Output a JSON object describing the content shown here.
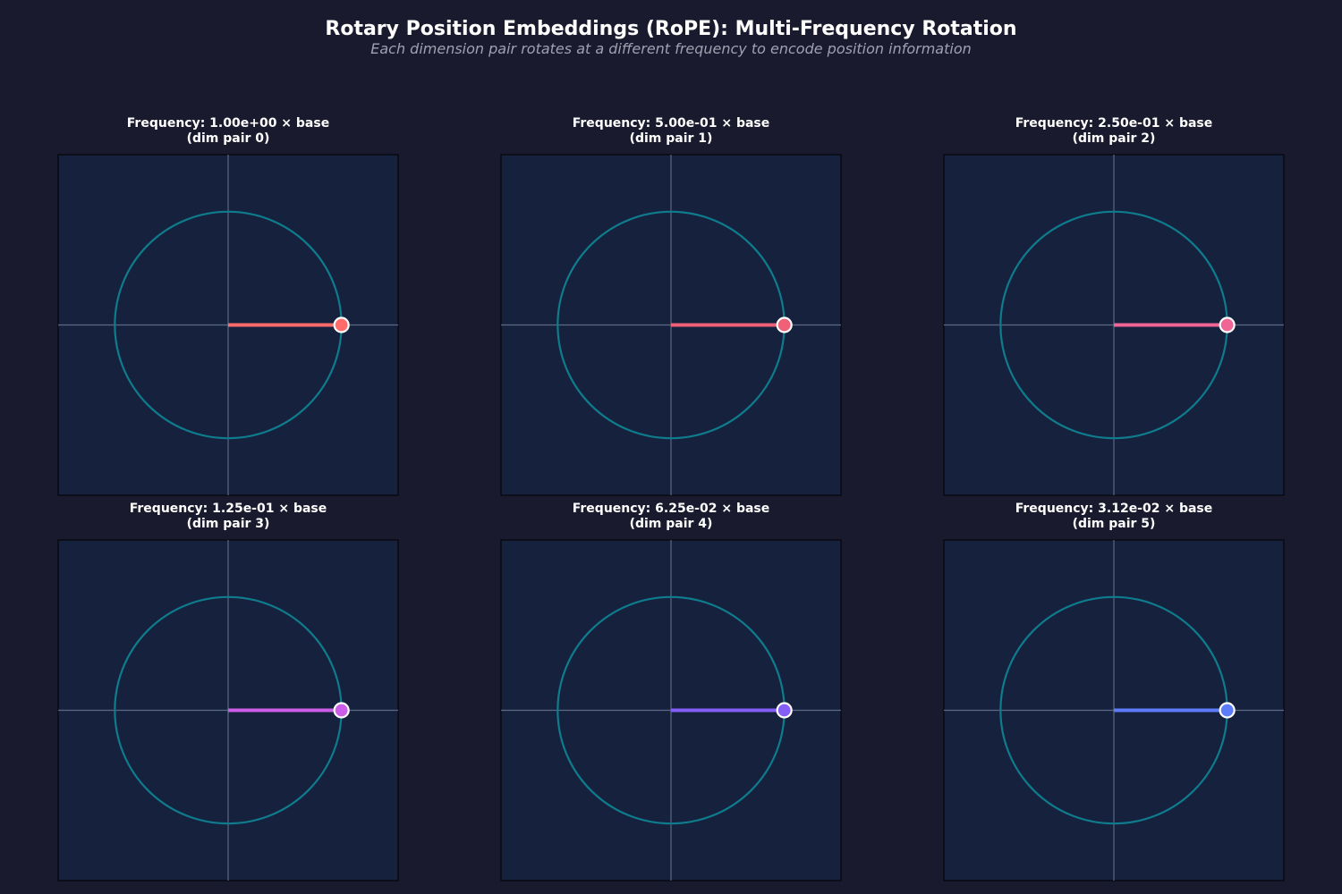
{
  "title": "Rotary Position Embeddings (RoPE): Multi-Frequency Rotation",
  "subtitle": "Each dimension pair rotates at a different frequency to encode position information",
  "colors": {
    "background": "#1a1a2e",
    "axes_bg": "#16213e",
    "circle": "#0e7c8c",
    "axis_lines": "#5a6a85"
  },
  "chart_data": [
    {
      "type": "line",
      "title_line1": "Frequency: 1.00e+00 × base",
      "title_line2": "(dim pair 0)",
      "xlim": [
        -1.5,
        1.5
      ],
      "ylim": [
        -1.5,
        1.5
      ],
      "unit_circle_radius": 1,
      "vector": {
        "x": 1,
        "y": 0
      },
      "color": "#ff6b6b"
    },
    {
      "type": "line",
      "title_line1": "Frequency: 5.00e-01 × base",
      "title_line2": "(dim pair 1)",
      "xlim": [
        -1.5,
        1.5
      ],
      "ylim": [
        -1.5,
        1.5
      ],
      "unit_circle_radius": 1,
      "vector": {
        "x": 1,
        "y": 0
      },
      "color": "#f06076"
    },
    {
      "type": "line",
      "title_line1": "Frequency: 2.50e-01 × base",
      "title_line2": "(dim pair 2)",
      "xlim": [
        -1.5,
        1.5
      ],
      "ylim": [
        -1.5,
        1.5
      ],
      "unit_circle_radius": 1,
      "vector": {
        "x": 1,
        "y": 0
      },
      "color": "#f06595"
    },
    {
      "type": "line",
      "title_line1": "Frequency: 1.25e-01 × base",
      "title_line2": "(dim pair 3)",
      "xlim": [
        -1.5,
        1.5
      ],
      "ylim": [
        -1.5,
        1.5
      ],
      "unit_circle_radius": 1,
      "vector": {
        "x": 1,
        "y": 0
      },
      "color": "#cc5de8"
    },
    {
      "type": "line",
      "title_line1": "Frequency: 6.25e-02 × base",
      "title_line2": "(dim pair 4)",
      "xlim": [
        -1.5,
        1.5
      ],
      "ylim": [
        -1.5,
        1.5
      ],
      "unit_circle_radius": 1,
      "vector": {
        "x": 1,
        "y": 0
      },
      "color": "#845ef7"
    },
    {
      "type": "line",
      "title_line1": "Frequency: 3.12e-02 × base",
      "title_line2": "(dim pair 5)",
      "xlim": [
        -1.5,
        1.5
      ],
      "ylim": [
        -1.5,
        1.5
      ],
      "unit_circle_radius": 1,
      "vector": {
        "x": 1,
        "y": 0
      },
      "color": "#5c7cfa"
    }
  ]
}
